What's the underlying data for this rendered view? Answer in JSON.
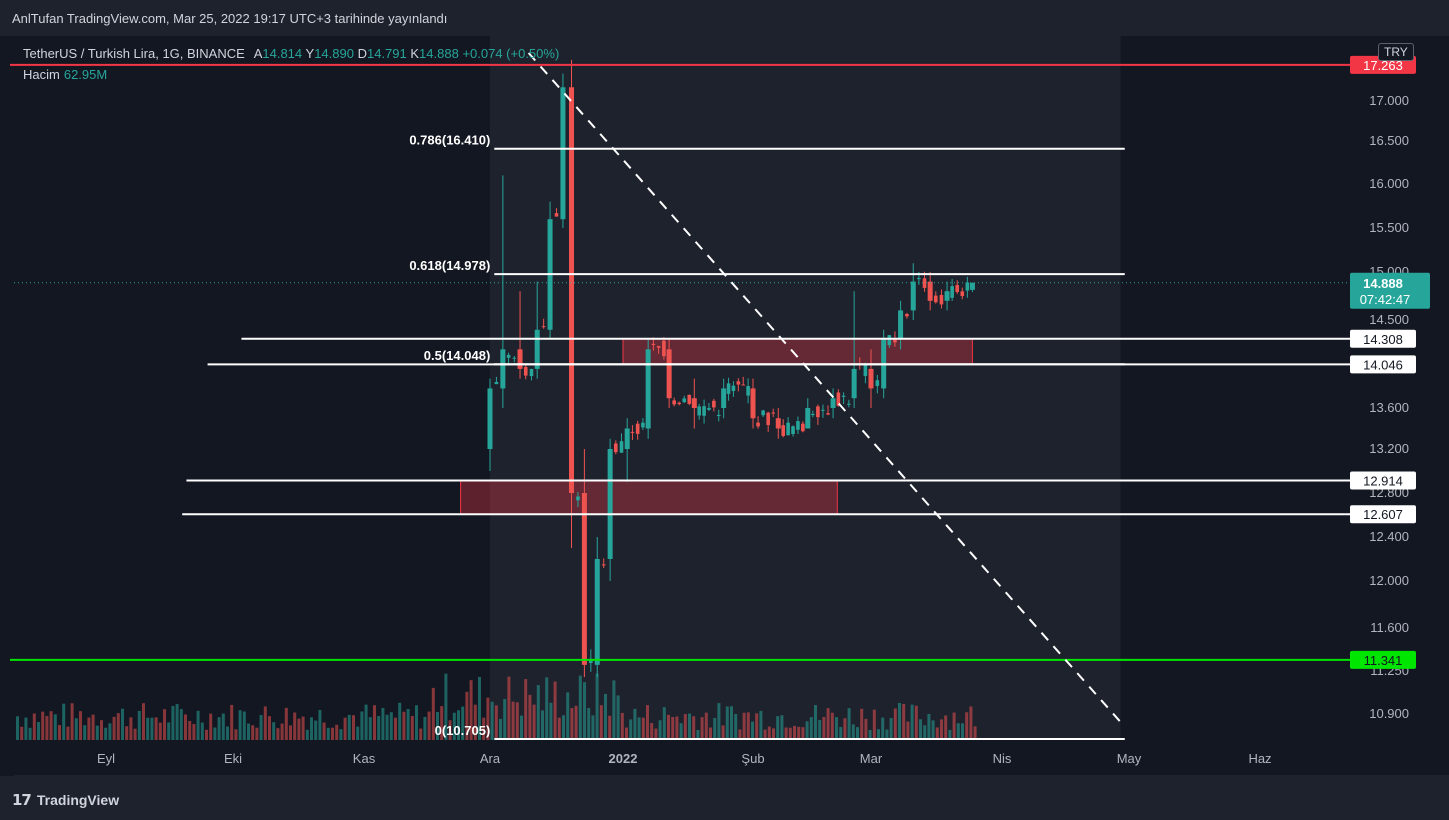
{
  "header": {
    "published": "AnlTufan TradingView.com, Mar 25, 2022 19:17 UTC+3 tarihinde yayınlandı"
  },
  "legend": {
    "symbol": "TetherUS / Turkish Lira, 1G, BINANCE",
    "open_label": "A",
    "open": "14.814",
    "high_label": "Y",
    "high": "14.890",
    "low_label": "D",
    "low": "14.791",
    "close_label": "K",
    "close": "14.888",
    "change": "+0.074 (+0.50%)",
    "volume_label": "Hacim",
    "volume": "62.95M"
  },
  "currency": "TRY",
  "footer": {
    "brand": "TradingView",
    "logo": "17"
  },
  "colors": {
    "bg": "#131722",
    "up": "#26a69a",
    "down": "#ef5350",
    "red_line": "#f23645",
    "green_line": "#00e600",
    "zone_fill": "#f2364555"
  },
  "chart_data": {
    "type": "candlestick",
    "symbol": "USDT/TRY",
    "timeframe": "1G",
    "price_range": [
      10.705,
      17.35
    ],
    "y_ticks": [
      "17.000",
      "16.500",
      "16.000",
      "15.500",
      "15.000",
      "14.500",
      "13.600",
      "13.200",
      "12.800",
      "12.400",
      "12.000",
      "11.600",
      "11.250",
      "10.900"
    ],
    "x_ticks": [
      {
        "label": "Eyl",
        "date": "2021-09-01"
      },
      {
        "label": "Eki",
        "date": "2021-10-01"
      },
      {
        "label": "Kas",
        "date": "2021-11-01"
      },
      {
        "label": "Ara",
        "date": "2021-12-01"
      },
      {
        "label": "2022",
        "date": "2022-01-01"
      },
      {
        "label": "Şub",
        "date": "2022-02-01"
      },
      {
        "label": "Mar",
        "date": "2022-03-01"
      },
      {
        "label": "Nis",
        "date": "2022-04-01"
      },
      {
        "label": "May",
        "date": "2022-05-01"
      },
      {
        "label": "Haz",
        "date": "2022-06-01"
      }
    ],
    "current_price": {
      "value": 14.888,
      "label": "14.888",
      "countdown": "07:42:47"
    },
    "horizontal_levels": [
      {
        "value": 17.263,
        "label": "17.263",
        "color": "#f23645",
        "badge_bg": "#f23645",
        "badge_fg": "#ffffff",
        "start": "2021-08-01"
      },
      {
        "value": 14.308,
        "label": "14.308",
        "color": "#ffffff",
        "badge_bg": "#ffffff",
        "badge_fg": "#131722",
        "start": "2021-10-03"
      },
      {
        "value": 14.046,
        "label": "14.046",
        "color": "#ffffff",
        "badge_bg": "#ffffff",
        "badge_fg": "#131722",
        "start": "2021-09-25"
      },
      {
        "value": 12.914,
        "label": "12.914",
        "color": "#ffffff",
        "badge_bg": "#ffffff",
        "badge_fg": "#131722",
        "start": "2021-09-20"
      },
      {
        "value": 12.607,
        "label": "12.607",
        "color": "#ffffff",
        "badge_bg": "#ffffff",
        "badge_fg": "#131722",
        "start": "2021-09-19"
      },
      {
        "value": 11.341,
        "label": "11.341",
        "color": "#00e600",
        "badge_bg": "#00e600",
        "badge_fg": "#131722",
        "start": "2021-08-01"
      }
    ],
    "fib_levels": [
      {
        "ratio": "0.786",
        "value": 16.41,
        "label": "0.786(16.410)"
      },
      {
        "ratio": "0.618",
        "value": 14.978,
        "label": "0.618(14.978)"
      },
      {
        "ratio": "0.5",
        "value": 14.048,
        "label": "0.5(14.048)"
      },
      {
        "ratio": "0",
        "value": 10.705,
        "label": "0(10.705)"
      }
    ],
    "fib_range": {
      "start": "2021-12-02",
      "end": "2022-04-30"
    },
    "zones": [
      {
        "from": "2022-01-01",
        "to": "2022-03-25",
        "low": 14.046,
        "high": 14.308
      },
      {
        "from": "2021-11-24",
        "to": "2022-02-21",
        "low": 12.607,
        "high": 12.914
      }
    ],
    "trendline": {
      "start": {
        "date": "2021-12-10",
        "value": 17.35
      },
      "end": {
        "date": "2022-04-30",
        "value": 10.8
      }
    },
    "candles": [
      {
        "d": "2021-12-01",
        "o": 13.2,
        "h": 13.9,
        "l": 13.0,
        "c": 13.8
      },
      {
        "d": "2021-12-04",
        "o": 13.8,
        "h": 16.1,
        "l": 13.6,
        "c": 14.2
      },
      {
        "d": "2021-12-08",
        "o": 14.2,
        "h": 14.8,
        "l": 13.9,
        "c": 14.0
      },
      {
        "d": "2021-12-12",
        "o": 14.0,
        "h": 14.9,
        "l": 13.9,
        "c": 14.4
      },
      {
        "d": "2021-12-15",
        "o": 14.4,
        "h": 15.8,
        "l": 14.3,
        "c": 15.6
      },
      {
        "d": "2021-12-18",
        "o": 15.6,
        "h": 17.2,
        "l": 15.5,
        "c": 17.1
      },
      {
        "d": "2021-12-20",
        "o": 17.1,
        "h": 17.3,
        "l": 12.3,
        "c": 12.8
      },
      {
        "d": "2021-12-23",
        "o": 12.8,
        "h": 13.2,
        "l": 11.2,
        "c": 11.3
      },
      {
        "d": "2021-12-26",
        "o": 11.3,
        "h": 12.4,
        "l": 11.2,
        "c": 12.2
      },
      {
        "d": "2021-12-29",
        "o": 12.2,
        "h": 13.3,
        "l": 12.0,
        "c": 13.2
      },
      {
        "d": "2022-01-02",
        "o": 13.2,
        "h": 13.5,
        "l": 12.9,
        "c": 13.4
      },
      {
        "d": "2022-01-07",
        "o": 13.4,
        "h": 14.3,
        "l": 13.3,
        "c": 14.2
      },
      {
        "d": "2022-01-12",
        "o": 14.2,
        "h": 14.3,
        "l": 13.6,
        "c": 13.7
      },
      {
        "d": "2022-01-18",
        "o": 13.7,
        "h": 13.9,
        "l": 13.4,
        "c": 13.6
      },
      {
        "d": "2022-01-25",
        "o": 13.6,
        "h": 13.9,
        "l": 13.5,
        "c": 13.8
      },
      {
        "d": "2022-02-01",
        "o": 13.8,
        "h": 13.9,
        "l": 13.4,
        "c": 13.5
      },
      {
        "d": "2022-02-07",
        "o": 13.5,
        "h": 13.6,
        "l": 13.3,
        "c": 13.4
      },
      {
        "d": "2022-02-14",
        "o": 13.4,
        "h": 13.7,
        "l": 13.4,
        "c": 13.6
      },
      {
        "d": "2022-02-20",
        "o": 13.6,
        "h": 13.8,
        "l": 13.5,
        "c": 13.7
      },
      {
        "d": "2022-02-25",
        "o": 13.7,
        "h": 14.8,
        "l": 13.6,
        "c": 14.0
      },
      {
        "d": "2022-03-01",
        "o": 14.0,
        "h": 14.2,
        "l": 13.6,
        "c": 13.8
      },
      {
        "d": "2022-03-04",
        "o": 13.8,
        "h": 14.4,
        "l": 13.7,
        "c": 14.3
      },
      {
        "d": "2022-03-08",
        "o": 14.3,
        "h": 14.7,
        "l": 14.2,
        "c": 14.6
      },
      {
        "d": "2022-03-11",
        "o": 14.6,
        "h": 15.1,
        "l": 14.5,
        "c": 14.9
      },
      {
        "d": "2022-03-15",
        "o": 14.9,
        "h": 15.0,
        "l": 14.6,
        "c": 14.7
      },
      {
        "d": "2022-03-19",
        "o": 14.7,
        "h": 14.9,
        "l": 14.6,
        "c": 14.8
      },
      {
        "d": "2022-03-25",
        "o": 14.814,
        "h": 14.89,
        "l": 14.791,
        "c": 14.888
      }
    ]
  }
}
